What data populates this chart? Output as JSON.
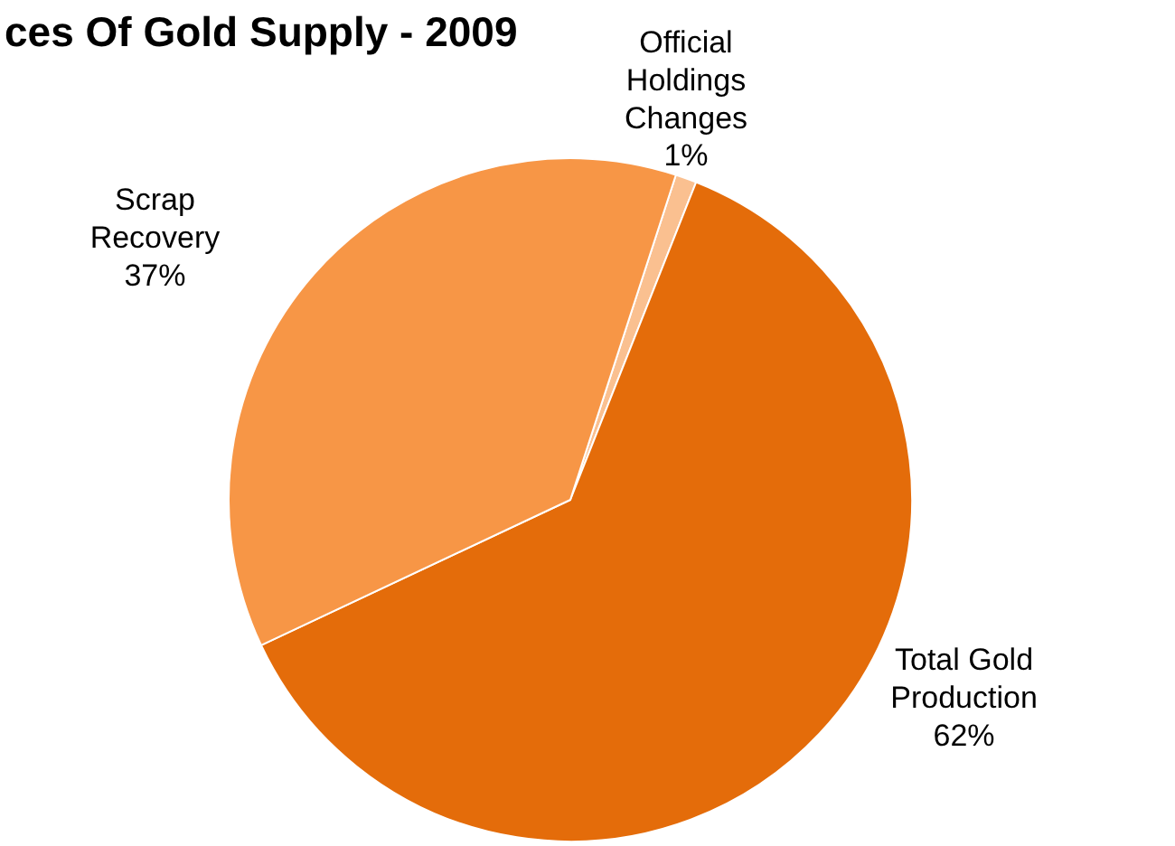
{
  "chart_data": {
    "type": "pie",
    "title": "ces Of Gold Supply - 2009",
    "categories": [
      "Official Holdings Changes",
      "Total Gold Production",
      "Scrap Recovery"
    ],
    "values": [
      1,
      62,
      37
    ],
    "colors": [
      "#fac090",
      "#e46c0a",
      "#f79646"
    ],
    "value_labels": [
      "1%",
      "62%",
      "37%"
    ]
  }
}
